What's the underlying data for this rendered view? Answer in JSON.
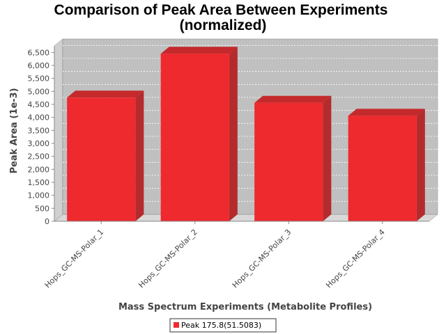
{
  "chart_data": {
    "type": "bar",
    "title_line1": "Comparison of Peak Area Between Experiments",
    "title_line2": "(normalized)",
    "xlabel": "Mass Spectrum Experiments (Metabolite Profiles)",
    "ylabel": "Peak Area (1e-3)",
    "categories": [
      "Hops_GC-MS-Polar_1",
      "Hops_GC-MS-Polar_2",
      "Hops_GC-MS-Polar_3",
      "Hops_GC-MS-Polar_4"
    ],
    "series": [
      {
        "name": "Peak 175.8(51.5083)",
        "values": [
          4760,
          6450,
          4560,
          4060
        ],
        "color": "#ee2a2e"
      }
    ],
    "ylim": [
      0,
      6750
    ],
    "yticks": [
      "0",
      "500",
      "1,000",
      "1,500",
      "2,000",
      "2,500",
      "3,000",
      "3,500",
      "4,000",
      "4,500",
      "5,000",
      "5,500",
      "6,000",
      "6,500"
    ],
    "ytick_values": [
      0,
      500,
      1000,
      1500,
      2000,
      2500,
      3000,
      3500,
      4000,
      4500,
      5000,
      5500,
      6000,
      6500
    ],
    "grid": true,
    "legend_position": "bottom",
    "plot_background": "#c0c0c0"
  }
}
